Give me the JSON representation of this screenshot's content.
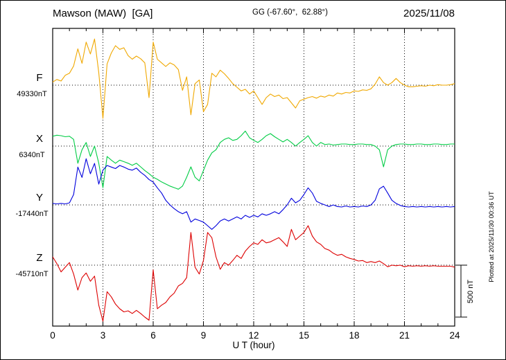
{
  "header": {
    "station": "Mawson (MAW)  [GA]",
    "coords": "GG (-67.60°,  62.88°)",
    "date": "2025/11/08"
  },
  "axis": {
    "x_label": "U T (hour)",
    "x_ticks": [
      0,
      3,
      6,
      9,
      12,
      15,
      18,
      21,
      24
    ]
  },
  "scale_bar": {
    "label": "500 nT"
  },
  "plotted_note": "Plotted at 2025/11/30 00:36 UT",
  "chart_data": {
    "type": "line",
    "title": "Mawson (MAW) [GA] magnetogram 2025/11/08",
    "xlabel": "U T (hour)",
    "ylabel": "",
    "x_range_hours": [
      0,
      24
    ],
    "x_step_hours": 0.25,
    "x_ticks": [
      0,
      3,
      6,
      9,
      12,
      15,
      18,
      21,
      24
    ],
    "grid": "dotted",
    "legend_position": "left-margin",
    "scale_bar_nT": 500,
    "series": [
      {
        "name": "F",
        "color": "#f0a800",
        "baseline_nT": 49330,
        "baseline_label": "49330nT",
        "offsets_nT": [
          30,
          55,
          40,
          95,
          115,
          185,
          350,
          210,
          415,
          300,
          445,
          120,
          -320,
          205,
          310,
          380,
          345,
          360,
          285,
          250,
          280,
          255,
          215,
          -120,
          415,
          250,
          215,
          180,
          215,
          195,
          150,
          -50,
          80,
          -285,
          15,
          50,
          -255,
          -185,
          115,
          80,
          145,
          110,
          65,
          15,
          -20,
          -55,
          -40,
          -85,
          -55,
          -120,
          -185,
          -120,
          -85,
          -110,
          -95,
          -130,
          -120,
          -170,
          -220,
          -150,
          -135,
          -120,
          -110,
          -125,
          -105,
          -115,
          -95,
          -105,
          -75,
          -85,
          -70,
          -75,
          -55,
          -60,
          -45,
          -50,
          -35,
          10,
          80,
          25,
          0,
          25,
          65,
          25,
          0,
          -15,
          -15,
          -10,
          -5,
          -10,
          0,
          -5,
          5,
          0,
          0,
          5,
          15
        ]
      },
      {
        "name": "X",
        "color": "#00cc44",
        "baseline_nT": 6340,
        "baseline_label": "6340nT",
        "offsets_nT": [
          95,
          105,
          100,
          90,
          95,
          65,
          -165,
          -35,
          35,
          -100,
          0,
          -165,
          -400,
          -100,
          -135,
          -165,
          -135,
          -150,
          -165,
          -185,
          -165,
          -200,
          -235,
          -265,
          -300,
          -320,
          -345,
          -365,
          -385,
          -400,
          -415,
          -385,
          -300,
          -200,
          -300,
          -335,
          -235,
          -135,
          -65,
          -35,
          35,
          65,
          80,
          55,
          65,
          100,
          145,
          80,
          55,
          35,
          65,
          100,
          120,
          90,
          65,
          40,
          65,
          35,
          0,
          35,
          65,
          100,
          35,
          0,
          35,
          15,
          20,
          10,
          15,
          20,
          20,
          15,
          15,
          20,
          20,
          15,
          15,
          0,
          -35,
          -200,
          -35,
          0,
          15,
          20,
          20,
          15,
          15,
          20,
          20,
          15,
          15,
          20,
          20,
          15,
          15,
          20,
          20
        ]
      },
      {
        "name": "Y",
        "color": "#0000dd",
        "baseline_nT": -17440,
        "baseline_label": "-17440nT",
        "offsets_nT": [
          15,
          10,
          15,
          10,
          20,
          100,
          365,
          265,
          445,
          300,
          400,
          200,
          335,
          380,
          365,
          350,
          380,
          365,
          345,
          335,
          355,
          315,
          285,
          245,
          220,
          165,
          115,
          45,
          0,
          -35,
          -65,
          -85,
          -65,
          -165,
          -135,
          -150,
          -165,
          -200,
          -235,
          -200,
          -155,
          -135,
          -155,
          -135,
          -115,
          -135,
          -100,
          -120,
          -100,
          -115,
          -85,
          -100,
          -85,
          -65,
          -85,
          -45,
          0,
          65,
          20,
          45,
          100,
          165,
          115,
          35,
          15,
          0,
          -15,
          0,
          -15,
          -20,
          -10,
          -20,
          -15,
          -20,
          -10,
          -15,
          0,
          45,
          155,
          180,
          115,
          45,
          15,
          -5,
          -15,
          -20,
          -15,
          -20,
          -15,
          -20,
          -15,
          -20,
          -15,
          -20,
          -15,
          -20,
          -15
        ]
      },
      {
        "name": "Z",
        "color": "#dd0000",
        "baseline_nT": -45710,
        "baseline_label": "-45710nT",
        "offsets_nT": [
          80,
          15,
          -65,
          -20,
          25,
          -85,
          -240,
          -120,
          -75,
          -155,
          -105,
          -385,
          -540,
          -255,
          -305,
          -375,
          -420,
          -450,
          -440,
          -465,
          -435,
          -465,
          -500,
          -530,
          -45,
          -420,
          -385,
          -360,
          -305,
          -270,
          -200,
          -175,
          -120,
          315,
          -20,
          -85,
          45,
          315,
          265,
          80,
          -40,
          25,
          0,
          45,
          95,
          65,
          135,
          180,
          215,
          200,
          245,
          215,
          225,
          245,
          265,
          225,
          180,
          345,
          245,
          280,
          315,
          380,
          280,
          225,
          200,
          160,
          145,
          115,
          95,
          105,
          80,
          65,
          55,
          40,
          45,
          25,
          35,
          25,
          40,
          15,
          -15,
          0,
          -5,
          0,
          -15,
          -5,
          -10,
          -5,
          -10,
          -5,
          -10,
          -5,
          -10,
          -10,
          -10,
          -10,
          -20
        ]
      }
    ]
  }
}
